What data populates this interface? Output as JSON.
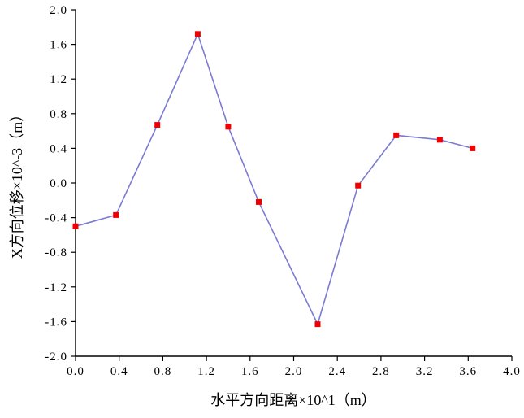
{
  "chart_data": {
    "type": "line",
    "title": "",
    "xlabel": "水平方向距离×10^1（m）",
    "ylabel": "X方向位移×10^-3（m）",
    "x": [
      0.0,
      0.37,
      0.75,
      1.12,
      1.4,
      1.68,
      2.22,
      2.59,
      2.94,
      3.34,
      3.64
    ],
    "y": [
      -0.5,
      -0.37,
      0.67,
      1.72,
      0.65,
      -0.22,
      -1.63,
      -0.03,
      0.55,
      0.5,
      0.4
    ],
    "xlim": [
      0.0,
      4.0
    ],
    "ylim": [
      -2.0,
      2.0
    ],
    "xticks": [
      "0.0",
      "0.4",
      "0.8",
      "1.2",
      "1.6",
      "2.0",
      "2.4",
      "2.8",
      "3.2",
      "3.6",
      "4.0"
    ],
    "yticks": [
      "2.0",
      "1.6",
      "1.2",
      "0.8",
      "0.4",
      "0.0",
      "-0.4",
      "-0.8",
      "-1.2",
      "-1.6",
      "-2.0"
    ],
    "grid": false,
    "legend": null,
    "marker": "square",
    "line_color": "#7b7bd2",
    "marker_color": "#f20000",
    "axis_color": "#000000",
    "background_color": "#ffffff"
  }
}
